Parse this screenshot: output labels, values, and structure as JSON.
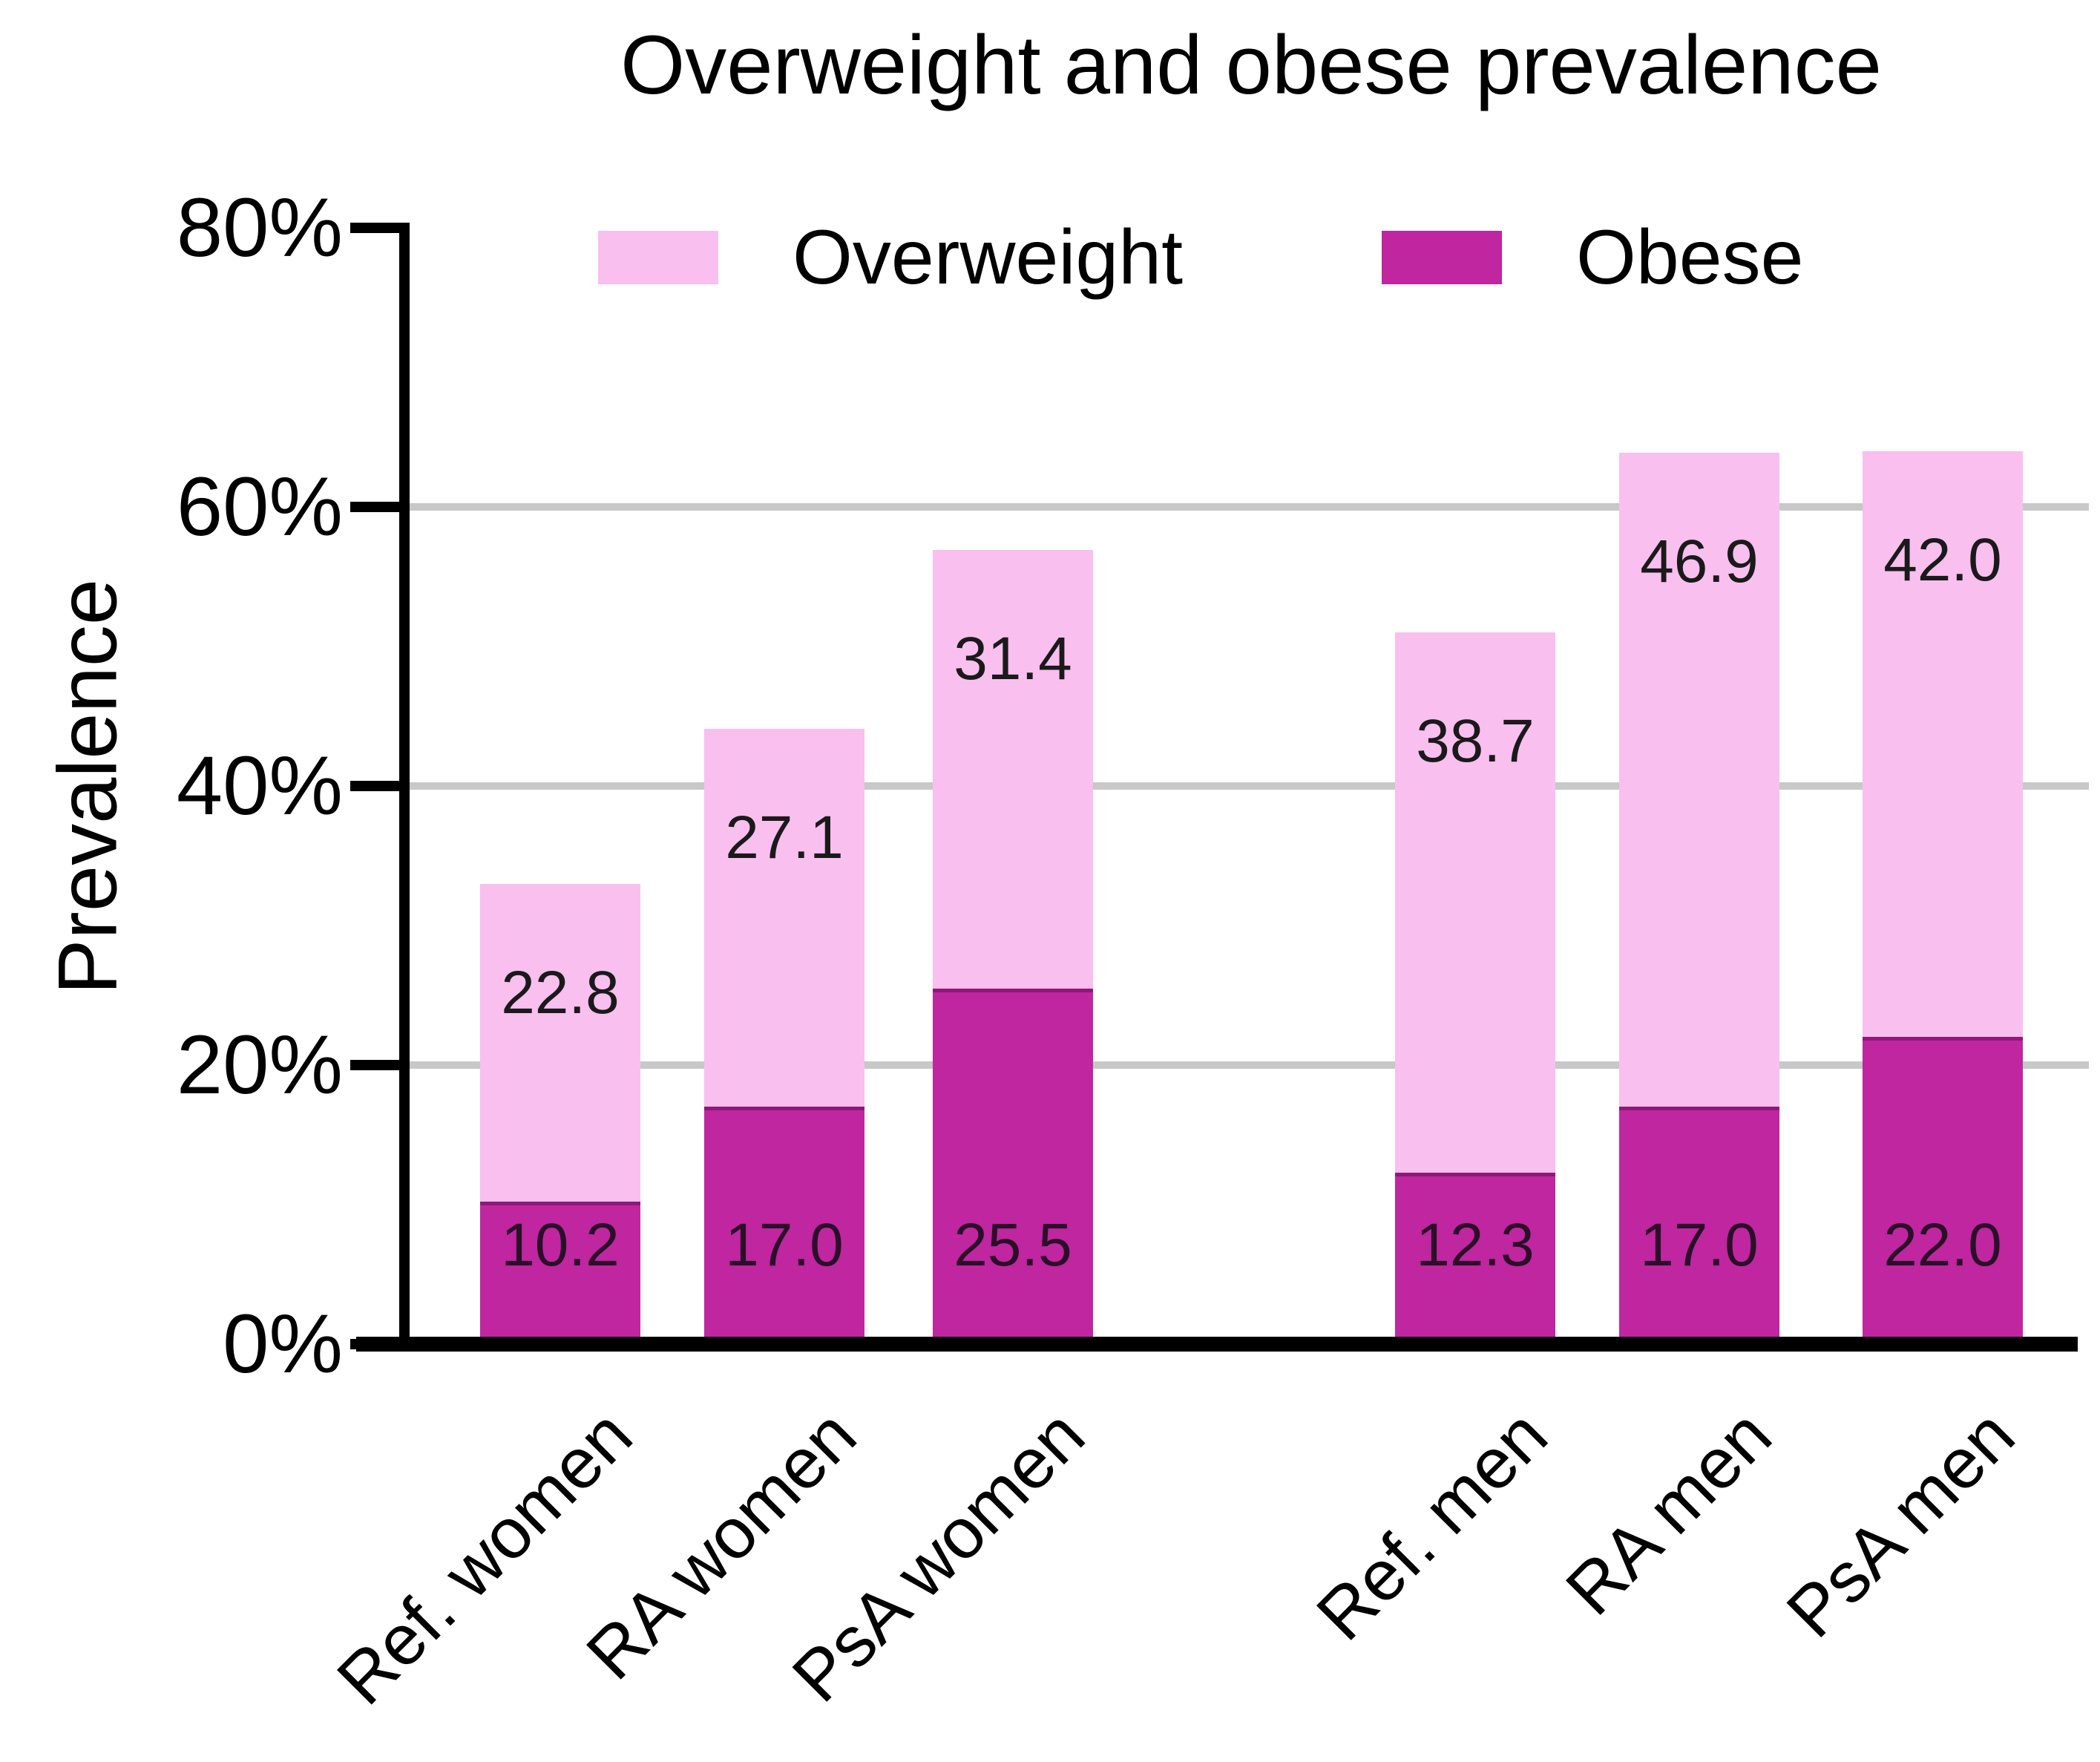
{
  "title": "Overweight and obese prevalence",
  "y_axis": {
    "label": "Prevalence",
    "tick_labels": [
      "80%",
      "60%",
      "40%",
      "20%",
      "0%"
    ],
    "tick_values": [
      80,
      60,
      40,
      20,
      0
    ]
  },
  "legend": [
    {
      "label": "Overweight",
      "color": "#f9bfef"
    },
    {
      "label": "Obese",
      "color": "#bf26a0"
    }
  ],
  "chart_data": {
    "type": "bar",
    "stacked": true,
    "title": "Overweight and obese prevalence",
    "ylabel": "Prevalence",
    "ylim": [
      0,
      80
    ],
    "y_tick_format": "percent",
    "grid": "horizontal gray lines at 20, 40, 60",
    "legend_position": "top",
    "categories": [
      "Ref. women",
      "RA women",
      "PsA women",
      "Ref. men",
      "RA men",
      "PsA men"
    ],
    "series": [
      {
        "name": "Obese",
        "color": "#bf26a0",
        "values": [
          10.2,
          17.0,
          25.5,
          12.3,
          17.0,
          22.0
        ]
      },
      {
        "name": "Overweight",
        "color": "#f9bfef",
        "values": [
          22.8,
          27.1,
          31.4,
          38.7,
          46.9,
          42.0
        ]
      }
    ],
    "totals": [
      33.0,
      44.1,
      56.9,
      51.0,
      63.9,
      64.0
    ],
    "bar_value_labels_decimals": 1
  },
  "colors": {
    "overweight": "#f9bfef",
    "obese": "#bf26a0",
    "gridline": "#c8c8c8",
    "axis": "#000000",
    "background": "#ffffff"
  }
}
